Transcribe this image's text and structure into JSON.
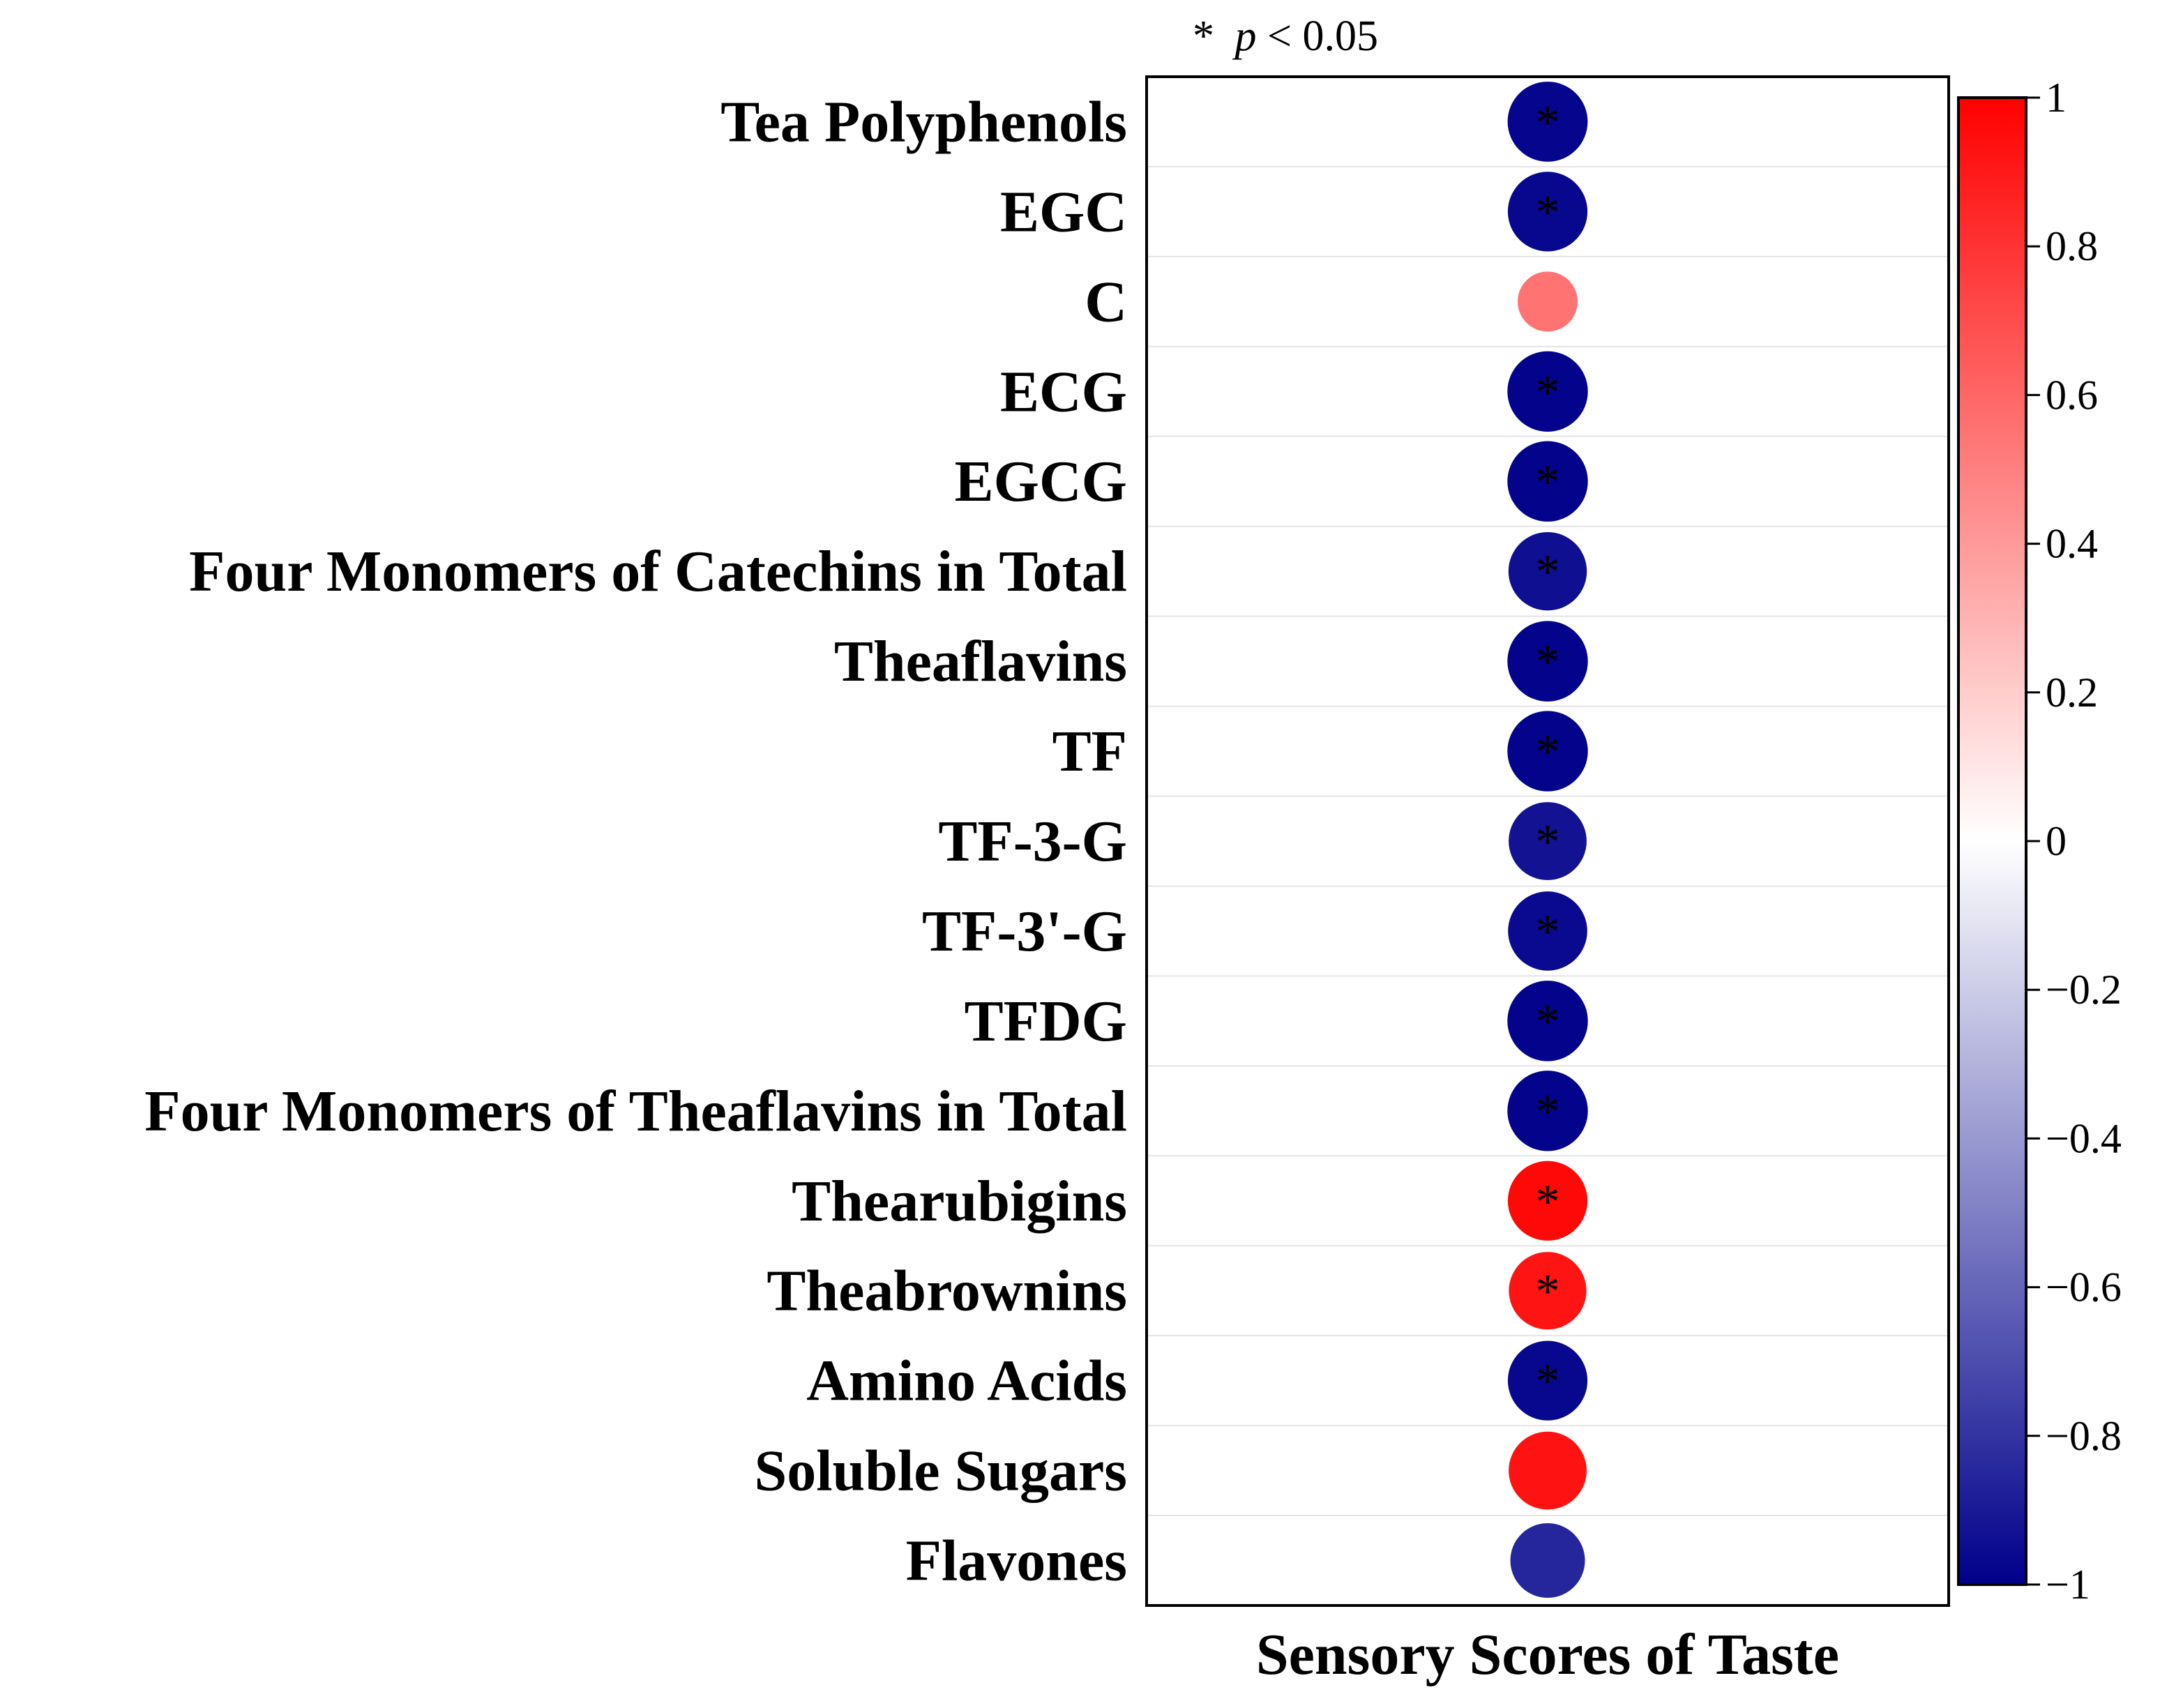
{
  "chart_data": {
    "type": "heatmap",
    "note_star": "*",
    "note_p": "p",
    "note_rest": " < 0.05",
    "rows": [
      "Tea Polyphenols",
      "EGC",
      "C",
      "ECG",
      "EGCG",
      "Four Monomers of Catechins in Total",
      "Theaflavins",
      "TF",
      "TF-3-G",
      "TF-3'-G",
      "TFDG",
      "Four Monomers of Theaflavins in Total",
      "Thearubigins",
      "Theabrownins",
      "Amino Acids",
      "Soluble Sugars",
      "Flavones"
    ],
    "columns": [
      "Sensory Scores of Taste"
    ],
    "values": [
      -0.98,
      -0.97,
      0.55,
      -0.99,
      -0.99,
      -0.94,
      -0.99,
      -0.99,
      -0.93,
      -0.96,
      -0.99,
      -0.99,
      0.97,
      0.92,
      -0.97,
      0.93,
      -0.85
    ],
    "significant": [
      true,
      true,
      false,
      true,
      true,
      true,
      true,
      true,
      true,
      true,
      true,
      true,
      true,
      true,
      true,
      false,
      false
    ],
    "significance_marker": "*",
    "colorbar": {
      "range": [
        -1,
        1
      ],
      "ticks": [
        1,
        0.8,
        0.6,
        0.4,
        0.2,
        0,
        -0.2,
        -0.4,
        -0.6,
        -0.8,
        -1
      ],
      "tick_labels": [
        "1",
        "0.8",
        "0.6",
        "0.4",
        "0.2",
        "0",
        "−0.2",
        "−0.4",
        "−0.6",
        "−0.8",
        "−1"
      ],
      "low_color": "#00008b",
      "mid_color": "#ffffff",
      "high_color": "#ff0000"
    }
  }
}
